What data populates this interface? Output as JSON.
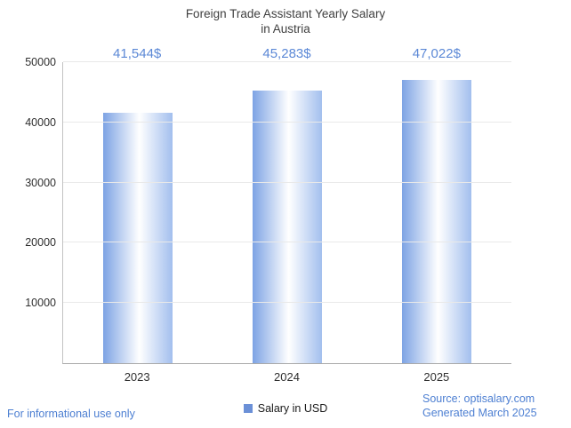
{
  "chart": {
    "title_line1": "Foreign Trade Assistant Yearly Salary",
    "title_line2": "in Austria"
  },
  "chart_data": {
    "type": "bar",
    "title": "Foreign Trade Assistant Yearly Salary in Austria",
    "categories": [
      "2023",
      "2024",
      "2025"
    ],
    "values": [
      41544,
      45283,
      47022
    ],
    "value_labels": [
      "41,544$",
      "45,283$",
      "47,022$"
    ],
    "ylim": [
      0,
      50000
    ],
    "ytick_step": 10000,
    "yticks": [
      10000,
      20000,
      30000,
      40000,
      50000
    ],
    "xlabel": "",
    "ylabel": "",
    "grid": true,
    "legend": "Salary in USD",
    "legend_position": "bottom"
  },
  "footer": {
    "disclaimer": "For informational use only",
    "source": "Source: optisalary.com",
    "generated": "Generated March 2025"
  },
  "colors": {
    "accent_text": "#5b88d6",
    "title_text": "#3f3f3f",
    "bar_edge_left": "#7da3e4",
    "bar_center": "#ffffff",
    "bar_edge_right": "#a3bfee",
    "legend_swatch": "#6b90d7",
    "grid": "#e9e9e9",
    "axis": "#a9a9a9"
  }
}
